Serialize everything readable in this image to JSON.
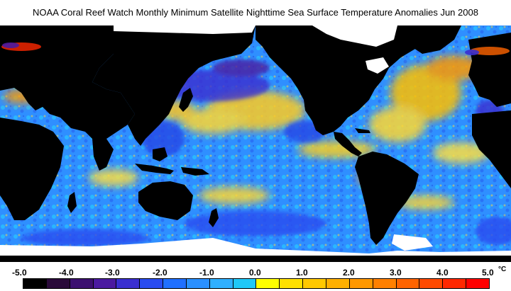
{
  "title": "NOAA Coral Reef Watch Monthly Minimum Satellite Nighttime Sea Surface Temperature Anomalies    Jun 2008",
  "legend": {
    "labels": [
      "-5.0",
      "-4.0",
      "-3.0",
      "-2.0",
      "-1.0",
      "0.0",
      "1.0",
      "2.0",
      "3.0",
      "4.0",
      "5.0"
    ],
    "unit": "°C",
    "colors": [
      "#000000",
      "#2a0a3a",
      "#3c1070",
      "#4b1aa0",
      "#3a2fd0",
      "#2a4cf0",
      "#2070ff",
      "#2a90ff",
      "#30b0ff",
      "#20c8f8",
      "#ffff00",
      "#ffe000",
      "#ffc800",
      "#ffb000",
      "#ff9800",
      "#ff8000",
      "#ff6400",
      "#ff4a00",
      "#ff2800",
      "#ff0000"
    ]
  },
  "map_colors": {
    "ocean_base": "#2f8fff",
    "land": "#000000",
    "ice": "#ffffff",
    "warm_anomaly": "#ffd21e",
    "hot_anomaly": "#ff7a00",
    "cool_anomaly": "#2846e6",
    "neutral_anomaly": "#28c8ff"
  }
}
